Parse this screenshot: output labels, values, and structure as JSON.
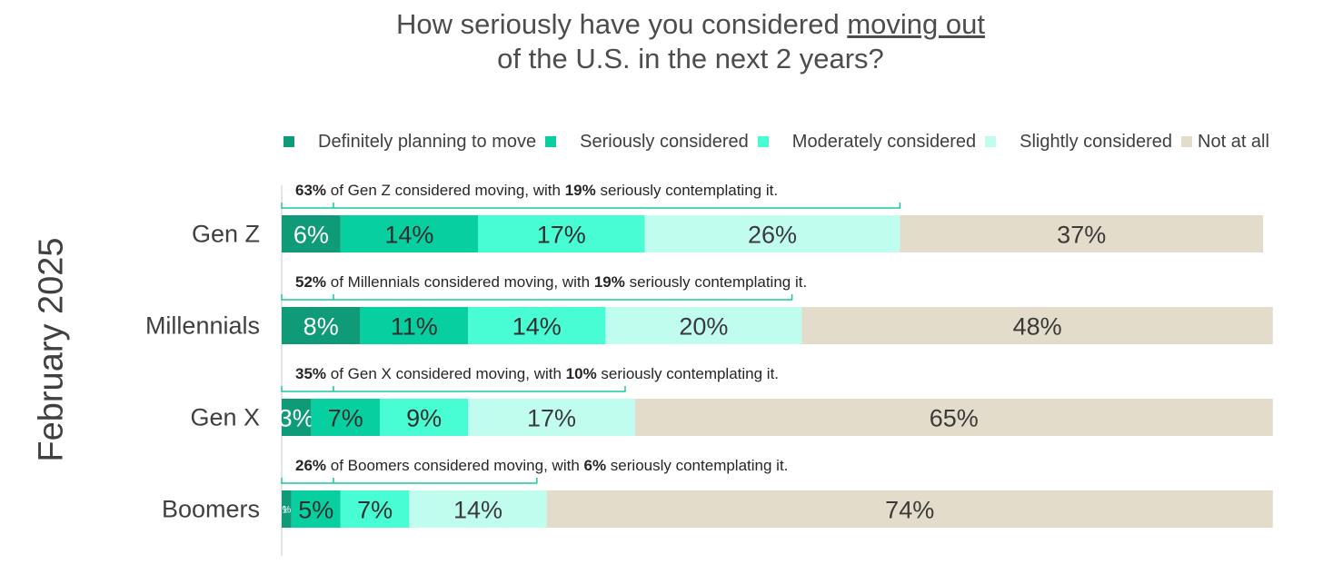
{
  "title": {
    "line1_pre": "How seriously have you considered ",
    "line1_underlined": "moving out",
    "line2": "of the U.S. in the next 2 years?"
  },
  "period_label": "February 2025",
  "colors": {
    "definitely": "#0f9a78",
    "seriously": "#07cfa0",
    "moderately": "#48fcd3",
    "slightly": "#c1fdee",
    "not_at_all": "#e3dccb",
    "bracket": "#18c89c",
    "axis": "#c8c8c8"
  },
  "chart_data": {
    "type": "bar",
    "orientation": "horizontal",
    "stacked": true,
    "categories": [
      "Gen Z",
      "Millennials",
      "Gen X",
      "Boomers"
    ],
    "xlim": [
      0,
      100
    ],
    "unit": "%",
    "grid": false,
    "legend_position": "top",
    "series": [
      {
        "name": "Definitely planning to move",
        "key": "definitely",
        "values": [
          6,
          8,
          3,
          1
        ],
        "labels": [
          "6%",
          "8%",
          "3%",
          "1%"
        ]
      },
      {
        "name": "Seriously considered",
        "key": "seriously",
        "values": [
          14,
          11,
          7,
          5
        ],
        "labels": [
          "14%",
          "11%",
          "7%",
          "5%"
        ]
      },
      {
        "name": "Moderately considered",
        "key": "moderately",
        "values": [
          17,
          14,
          9,
          7
        ],
        "labels": [
          "17%",
          "14%",
          "9%",
          "7%"
        ]
      },
      {
        "name": "Slightly considered",
        "key": "slightly",
        "values": [
          26,
          20,
          17,
          14
        ],
        "labels": [
          "26%",
          "20%",
          "17%",
          "14%"
        ]
      },
      {
        "name": "Not at all",
        "key": "not_at_all",
        "values": [
          37,
          48,
          65,
          74
        ],
        "labels": [
          "37%",
          "48%",
          "65%",
          "74%"
        ]
      }
    ],
    "annotations": [
      {
        "considered": "63%",
        "mid1": " of Gen Z considered moving, with ",
        "serious": "19%",
        "end": " seriously contemplating it.",
        "considered_value": 63,
        "serious_value": 19
      },
      {
        "considered": "52%",
        "mid1": " of Millennials considered moving, with ",
        "serious": "19%",
        "end": " seriously contemplating it.",
        "considered_value": 52,
        "serious_value": 19
      },
      {
        "considered": "35%",
        "mid1": " of Gen X considered moving, with ",
        "serious": "10%",
        "end": " seriously contemplating it.",
        "considered_value": 35,
        "serious_value": 10
      },
      {
        "considered": "26%",
        "mid1": " of Boomers considered moving, with ",
        "serious": "6%",
        "end": " seriously contemplating it.",
        "considered_value": 26,
        "serious_value": 6
      }
    ]
  }
}
